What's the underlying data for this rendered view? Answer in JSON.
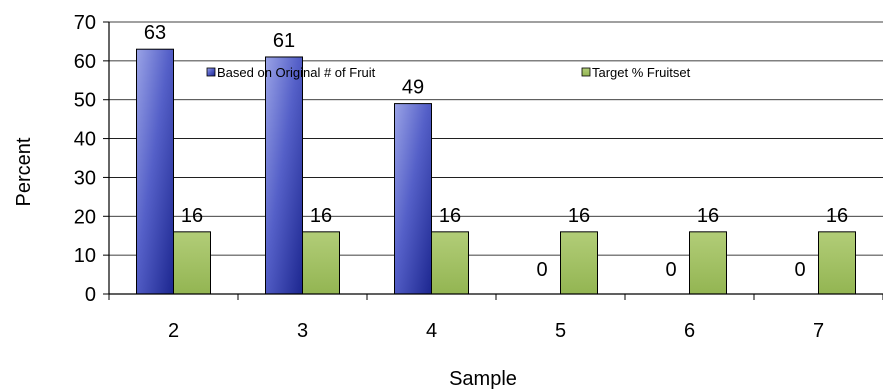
{
  "chart_data": {
    "type": "bar",
    "categories": [
      "2",
      "3",
      "4",
      "5",
      "6",
      "7"
    ],
    "series": [
      {
        "name": "Based on Original # of Fruit",
        "values": [
          63,
          61,
          49,
          0,
          0,
          0
        ],
        "color": "#3a46b0"
      },
      {
        "name": "Target % Fruitset",
        "values": [
          16,
          16,
          16,
          16,
          16,
          16
        ],
        "color": "#9bbb59"
      }
    ],
    "data_labels": [
      [
        "63",
        "61",
        "49",
        "0",
        "0",
        "0"
      ],
      [
        "16",
        "16",
        "16",
        "16",
        "16",
        "16"
      ]
    ],
    "xlabel": "Sample",
    "ylabel": "Percent",
    "ylim": [
      0,
      70
    ],
    "yticks": [
      0,
      10,
      20,
      30,
      40,
      50,
      60,
      70
    ],
    "grid": true,
    "legend": "top"
  }
}
